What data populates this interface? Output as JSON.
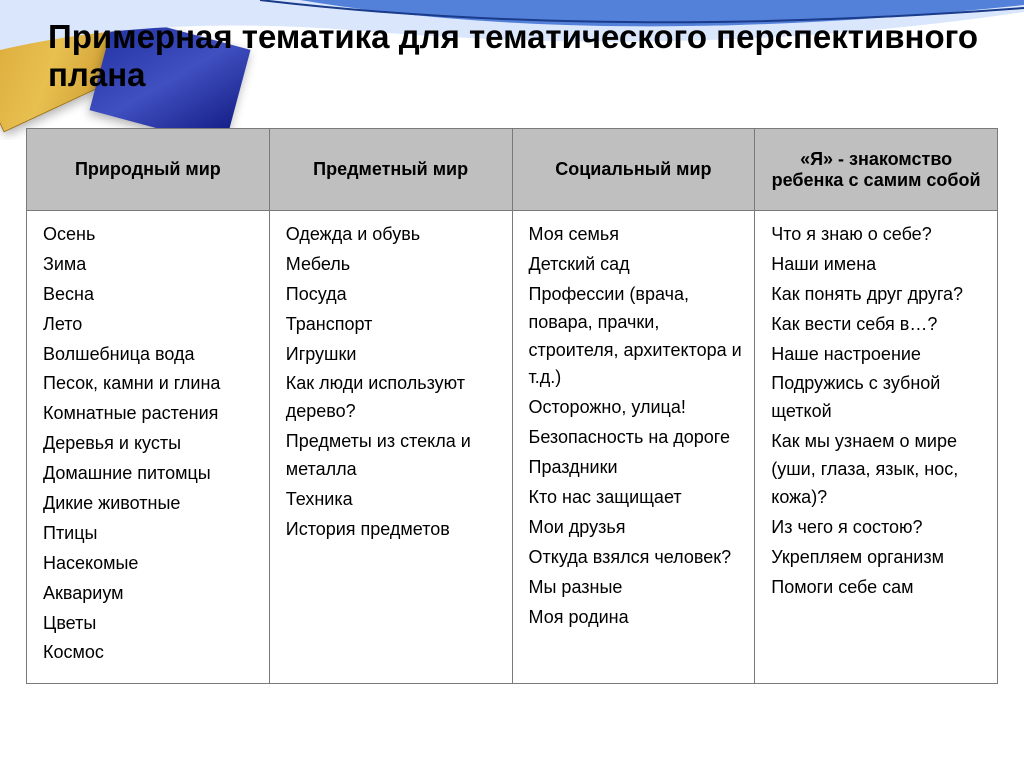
{
  "title": "Примерная тематика для тематического перспективного плана",
  "headers": [
    "Природный мир",
    "Предметный мир",
    "Социальный мир",
    "«Я» - знакомство ребенка с самим собой"
  ],
  "columns": [
    [
      "Осень",
      "Зима",
      "Весна",
      "Лето",
      "Волшебница вода",
      "Песок, камни и глина",
      "Комнатные растения",
      "Деревья и кусты",
      "Домашние питомцы",
      "Дикие животные",
      "Птицы",
      "Насекомые",
      "Аквариум",
      "Цветы",
      "Космос"
    ],
    [
      "Одежда и обувь",
      "Мебель",
      "Посуда",
      "Транспорт",
      "Игрушки",
      "Как люди используют дерево?",
      "Предметы из стекла и металла",
      "Техника",
      "История предметов"
    ],
    [
      "Моя семья",
      "Детский сад",
      "Профессии (врача, повара, прачки, строителя, архитектора и т.д.)",
      "Осторожно, улица!",
      "Безопасность на дороге",
      "Праздники",
      "Кто нас защищает",
      "Мои друзья",
      "Откуда взялся человек?",
      "Мы разные",
      "Моя родина"
    ],
    [
      "Что я знаю о себе?",
      "Наши имена",
      "Как понять друг друга?",
      "Как вести себя в…?",
      "Наше настроение",
      "Подружись с зубной щеткой",
      "Как мы узнаем о мире (уши, глаза, язык, нос, кожа)?",
      "Из чего я состою?",
      "Укрепляем организм",
      "Помоги себе сам"
    ]
  ],
  "colors": {
    "header_bg": "#bfbfbf",
    "border": "#7a7a7a",
    "text": "#000000",
    "swoosh": "#3b6fd4"
  }
}
